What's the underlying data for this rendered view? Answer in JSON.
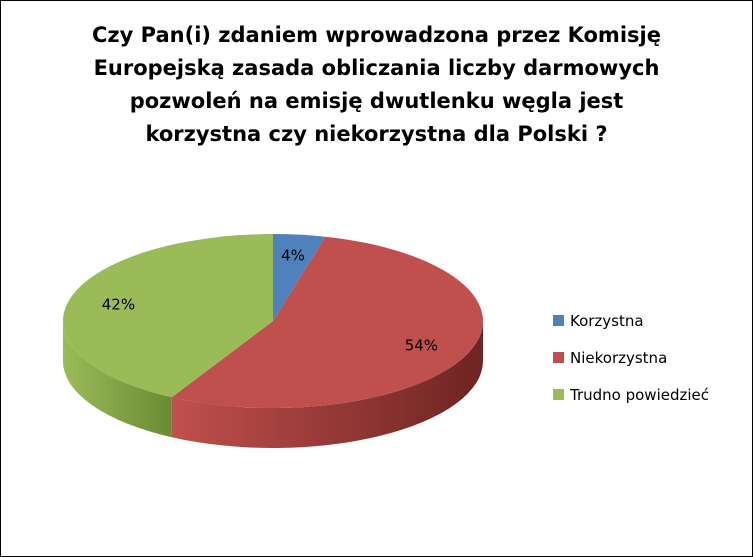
{
  "chart_data": {
    "type": "pie",
    "title_lines": [
      "Czy Pan(i) zdaniem wprowadzona przez Komisję",
      "Europejską zasada obliczania liczby darmowych",
      "pozwoleń na emisję dwutlenku węgla jest",
      "korzystna czy niekorzystna dla Polski ?"
    ],
    "style": "3d",
    "legend_position": "right",
    "slices": [
      {
        "label": "Korzystna",
        "value": 4,
        "value_label": "4%",
        "color": "#4f81bd",
        "side_color": "#2e5086"
      },
      {
        "label": "Niekorzystna",
        "value": 54,
        "value_label": "54%",
        "color": "#c0504d",
        "side_color": "#6e2422"
      },
      {
        "label": "Trudno powiedzieć",
        "value": 42,
        "value_label": "42%",
        "color": "#9bbb59",
        "side_color": "#6b8a33"
      }
    ]
  }
}
